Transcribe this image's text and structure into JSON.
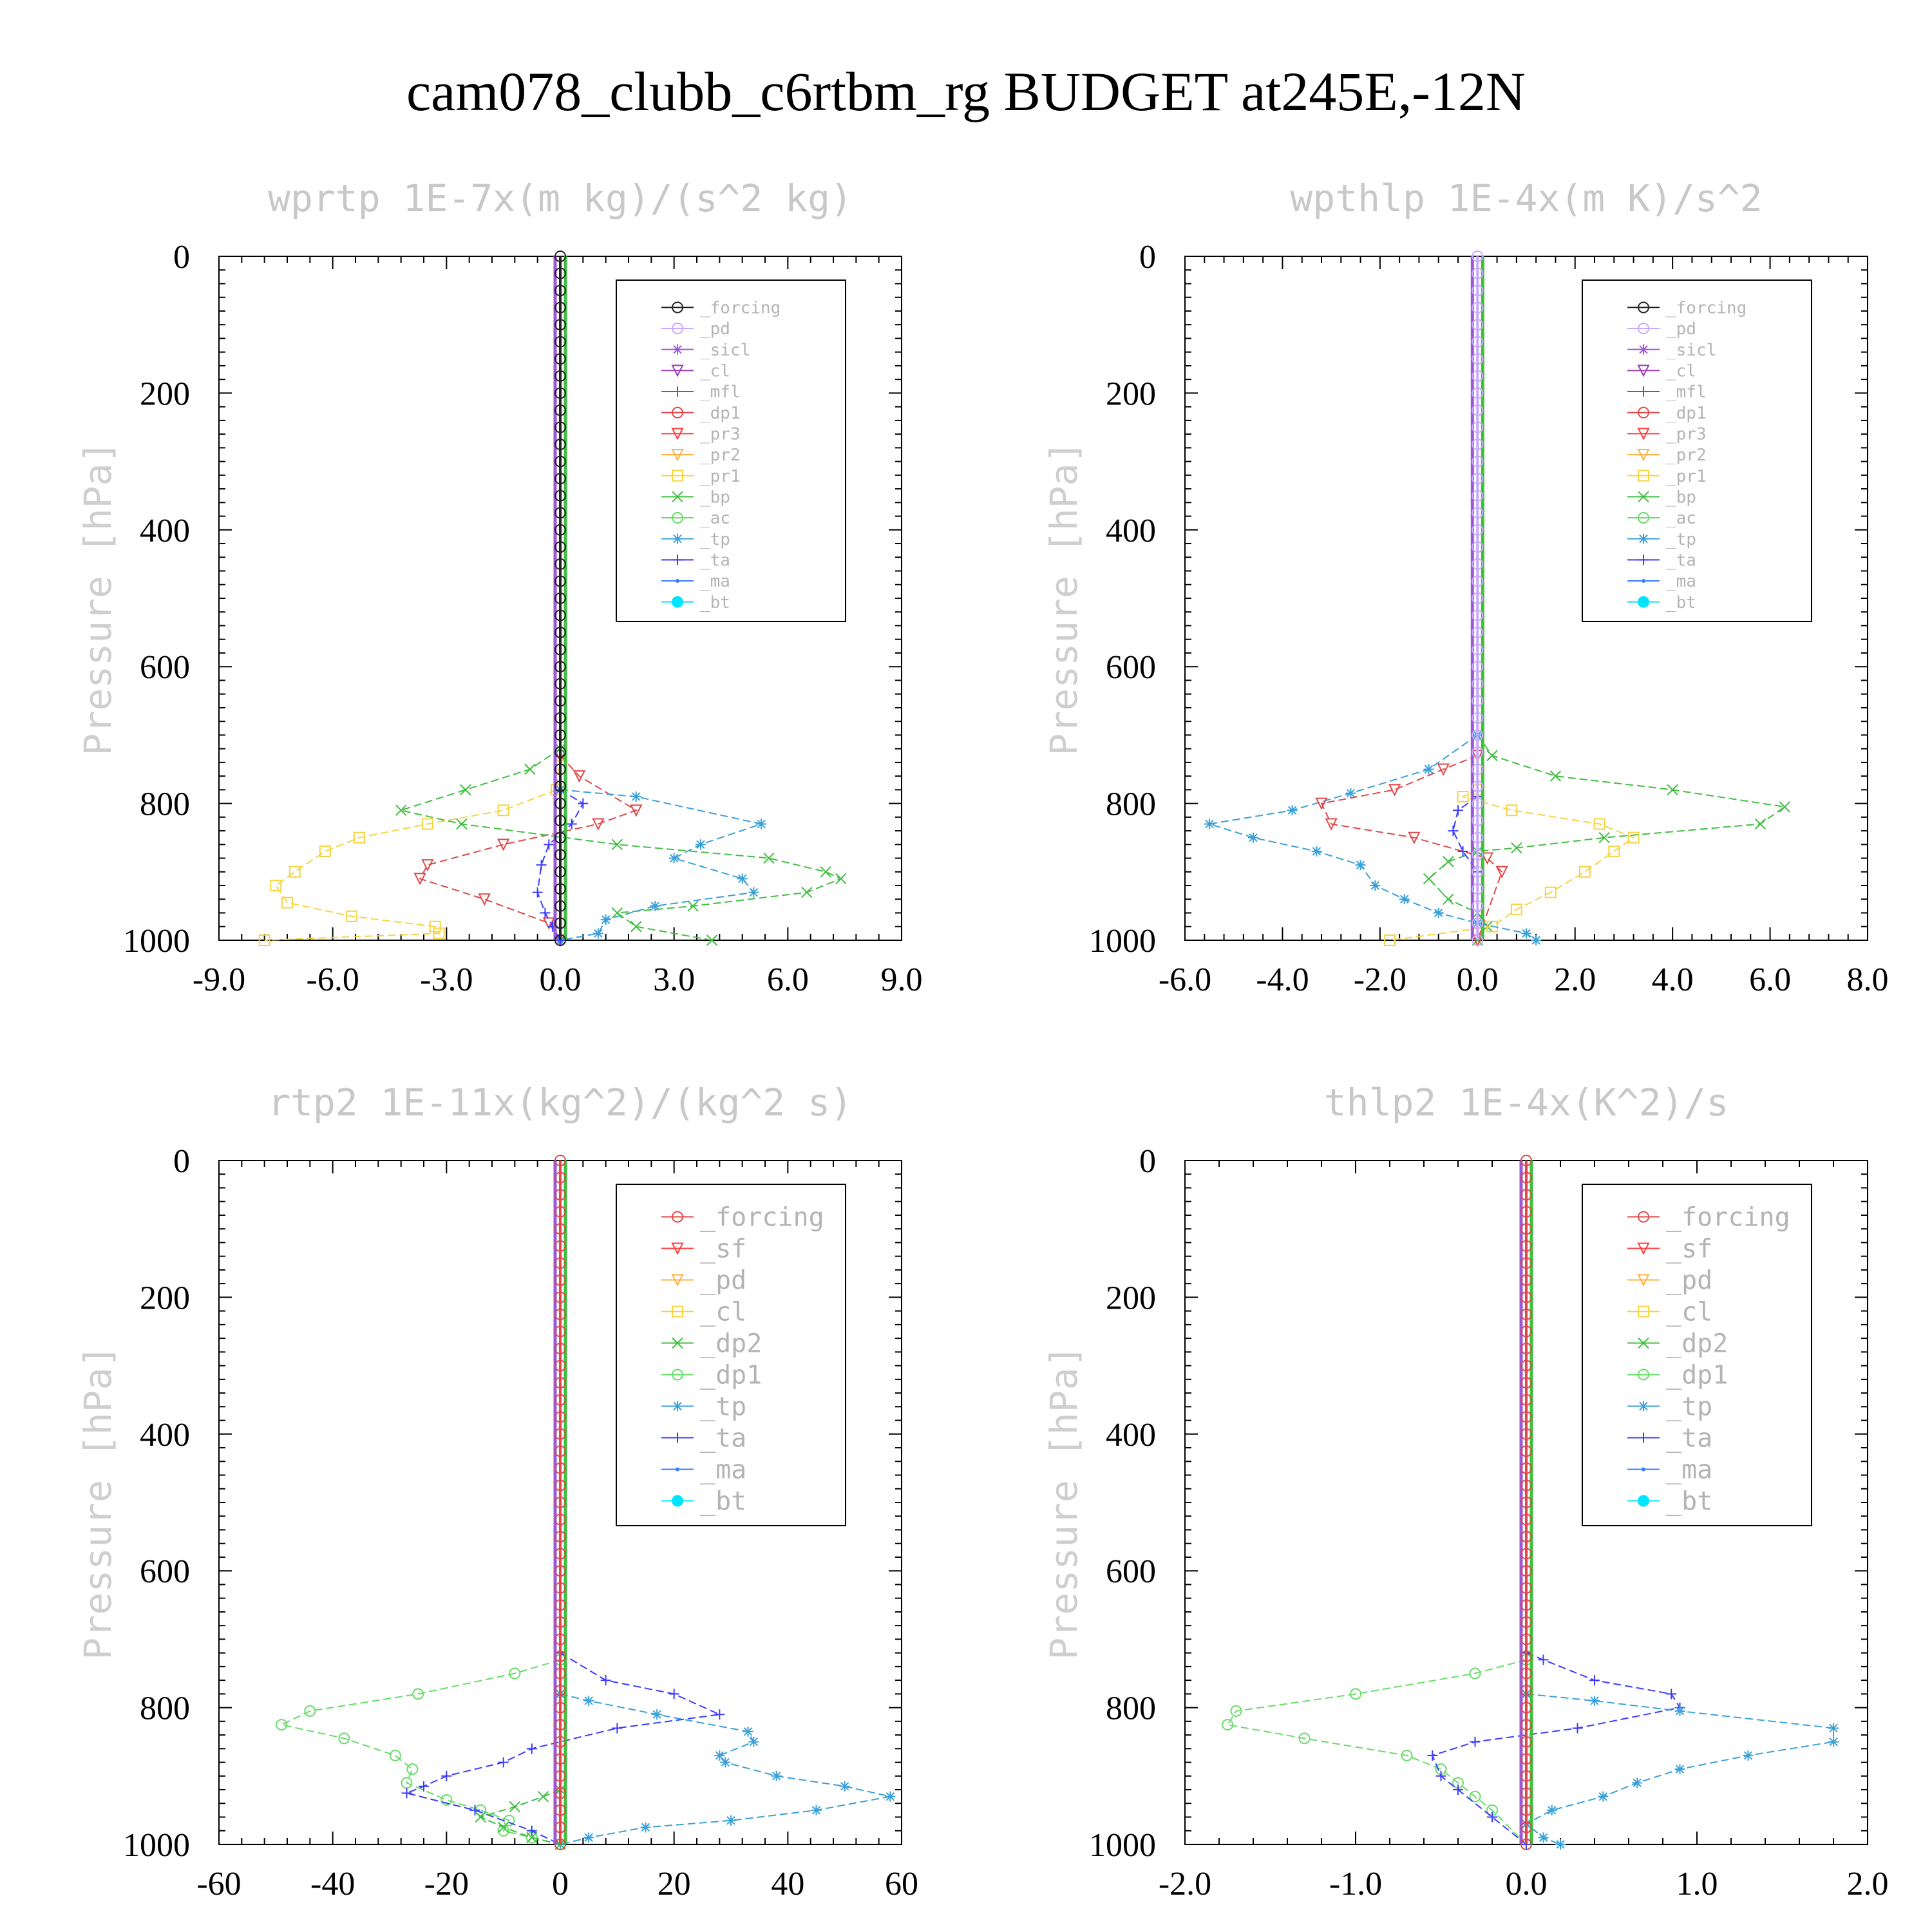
{
  "title": "cam078_clubb_c6rtbm_rg  BUDGET at245E,-12N",
  "colors": {
    "forcing_black": "#222222",
    "pd": "#c9a8ff",
    "sicl": "#9b59d6",
    "cl_purple": "#9b3fb5",
    "mfl": "#d43060",
    "dp1_red": "#e04848",
    "red": "#ff3c3c",
    "orange": "#ffb040",
    "yellow": "#f5d442",
    "green": "#3fbf3f",
    "lightgreen": "#66dd66",
    "teal": "#3aa0d8",
    "blue": "#3b3bff",
    "cyan": "#00e5ff"
  },
  "chart_data": [
    {
      "type": "line",
      "title": "wprtp  1E-7x(m kg)/(s^2 kg)",
      "ylabel": "Pressure [hPa]",
      "xlim": [
        -9,
        9
      ],
      "ylim": [
        1000,
        0
      ],
      "xticks": [
        "-9.0",
        "-6.0",
        "-3.0",
        "0.0",
        "3.0",
        "6.0",
        "9.0"
      ],
      "yticks": [
        "0",
        "200",
        "400",
        "600",
        "800",
        "1000"
      ],
      "legend": [
        "_forcing",
        "_pd",
        "_sicl",
        "_cl",
        "_mfl",
        "_dp1",
        "_pr3",
        "_pr2",
        "_pr1",
        "_bp",
        "_ac",
        "_tp",
        "_ta",
        "_ma",
        "_bt"
      ],
      "series": [
        {
          "name": "_pr1",
          "color": "#f5d442",
          "marker": "square",
          "x": [
            0,
            -0.1,
            -1.5,
            -3.5,
            -5.3,
            -6.2,
            -7.0,
            -7.5,
            -7.2,
            -5.5,
            -3.3,
            -3.2,
            -7.8
          ],
          "y": [
            730,
            780,
            810,
            830,
            850,
            870,
            900,
            920,
            945,
            965,
            980,
            990,
            1000
          ]
        },
        {
          "name": "_dp1",
          "color": "#e04848",
          "marker": "tri-down",
          "x": [
            0,
            0.5,
            2,
            1,
            -1.5,
            -3.5,
            -3.7,
            -2,
            -0.3,
            0
          ],
          "y": [
            730,
            760,
            810,
            830,
            860,
            890,
            910,
            940,
            975,
            1000
          ]
        },
        {
          "name": "_bp",
          "color": "#3fbf3f",
          "marker": "x",
          "x": [
            0,
            -0.8,
            -2.5,
            -4.2,
            -2.6,
            1.5,
            5.5,
            7,
            7.4,
            6.5,
            3.5,
            1.5,
            2,
            4
          ],
          "y": [
            720,
            750,
            780,
            810,
            830,
            860,
            880,
            900,
            910,
            930,
            950,
            960,
            980,
            1000
          ]
        },
        {
          "name": "_tp",
          "color": "#3aa0d8",
          "marker": "star",
          "x": [
            0,
            2,
            5.3,
            3.7,
            3,
            4.8,
            5.1,
            2.5,
            1.2,
            1,
            0
          ],
          "y": [
            780,
            790,
            830,
            860,
            880,
            910,
            930,
            950,
            970,
            990,
            1000
          ]
        },
        {
          "name": "_ta",
          "color": "#3b3bff",
          "marker": "plus",
          "x": [
            0,
            0.6,
            0.3,
            -0.3,
            -0.5,
            -0.6,
            -0.4,
            -0.2,
            0
          ],
          "y": [
            780,
            800,
            830,
            860,
            890,
            930,
            960,
            980,
            1000
          ]
        },
        {
          "name": "_forcing",
          "color": "#222222",
          "marker": "circle",
          "x": [
            0,
            0
          ],
          "y": [
            0,
            1000
          ]
        }
      ]
    },
    {
      "type": "line",
      "title": "wpthlp  1E-4x(m K)/s^2",
      "ylabel": "Pressure [hPa]",
      "xlim": [
        -6,
        8
      ],
      "ylim": [
        1000,
        0
      ],
      "xticks": [
        "-6.0",
        "-4.0",
        "-2.0",
        "0.0",
        "2.0",
        "4.0",
        "6.0",
        "8.0"
      ],
      "yticks": [
        "0",
        "200",
        "400",
        "600",
        "800",
        "1000"
      ],
      "legend": [
        "_forcing",
        "_pd",
        "_sicl",
        "_cl",
        "_mfl",
        "_dp1",
        "_pr3",
        "_pr2",
        "_pr1",
        "_bp",
        "_ac",
        "_tp",
        "_ta",
        "_ma",
        "_bt"
      ],
      "series": [
        {
          "name": "_bp",
          "color": "#3fbf3f",
          "marker": "x",
          "x": [
            0,
            0.3,
            1.6,
            4,
            6.3,
            5.8,
            2.6,
            0.8,
            0,
            -0.6,
            -1,
            -0.6,
            0,
            0.2,
            0
          ],
          "y": [
            700,
            730,
            760,
            780,
            805,
            830,
            850,
            865,
            870,
            885,
            910,
            940,
            960,
            980,
            1000
          ]
        },
        {
          "name": "_pr1",
          "color": "#f5d442",
          "marker": "square",
          "x": [
            0,
            -0.3,
            0.7,
            2.5,
            3.2,
            2.8,
            2.2,
            1.5,
            0.8,
            0.3,
            -1.8
          ],
          "y": [
            780,
            790,
            810,
            830,
            850,
            870,
            900,
            930,
            955,
            980,
            1000
          ]
        },
        {
          "name": "_tp",
          "color": "#3aa0d8",
          "marker": "star",
          "x": [
            0,
            -1,
            -2.6,
            -3.8,
            -5.5,
            -4.6,
            -3.3,
            -2.4,
            -2.1,
            -1.5,
            -0.8,
            0,
            1,
            1.2
          ],
          "y": [
            700,
            750,
            785,
            810,
            830,
            850,
            870,
            890,
            920,
            940,
            960,
            975,
            990,
            1000
          ]
        },
        {
          "name": "_dp1",
          "color": "#e04848",
          "marker": "tri-down",
          "x": [
            0,
            -0.7,
            -1.7,
            -3.2,
            -3,
            -1.3,
            0.2,
            0.5,
            0
          ],
          "y": [
            730,
            750,
            780,
            800,
            830,
            850,
            880,
            900,
            1000
          ]
        },
        {
          "name": "_ta",
          "color": "#3b3bff",
          "marker": "plus",
          "x": [
            0,
            -0.4,
            -0.5,
            -0.3,
            0
          ],
          "y": [
            790,
            810,
            840,
            870,
            900
          ]
        },
        {
          "name": "_forcing",
          "color": "#c9a8ff",
          "marker": "circle",
          "x": [
            0,
            0
          ],
          "y": [
            0,
            1000
          ]
        }
      ]
    },
    {
      "type": "line",
      "title": "rtp2  1E-11x(kg^2)/(kg^2 s)",
      "ylabel": "Pressure [hPa]",
      "xlim": [
        -60,
        60
      ],
      "ylim": [
        1000,
        0
      ],
      "xticks": [
        "-60",
        "-40",
        "-20",
        "0",
        "20",
        "40",
        "60"
      ],
      "yticks": [
        "0",
        "200",
        "400",
        "600",
        "800",
        "1000"
      ],
      "legend": [
        "_forcing",
        "_sf",
        "_pd",
        "_cl",
        "_dp2",
        "_dp1",
        "_tp",
        "_ta",
        "_ma",
        "_bt"
      ],
      "series": [
        {
          "name": "_dp1",
          "color": "#66dd66",
          "marker": "circle",
          "x": [
            0,
            -8,
            -25,
            -44,
            -49,
            -38,
            -29,
            -26,
            -27,
            -20,
            -14,
            -9,
            -10,
            -5,
            0
          ],
          "y": [
            730,
            750,
            780,
            805,
            825,
            845,
            870,
            890,
            910,
            935,
            950,
            965,
            980,
            990,
            1000
          ]
        },
        {
          "name": "_ta",
          "color": "#3b3bff",
          "marker": "plus",
          "x": [
            0,
            8,
            20,
            28,
            10,
            -5,
            -10,
            -20,
            -24,
            -27,
            -15,
            -5,
            0
          ],
          "y": [
            720,
            760,
            780,
            810,
            830,
            860,
            880,
            900,
            915,
            925,
            950,
            980,
            1000
          ]
        },
        {
          "name": "_tp",
          "color": "#3aa0d8",
          "marker": "star",
          "x": [
            0,
            5,
            17,
            33,
            34,
            28,
            29,
            38,
            50,
            58,
            45,
            30,
            15,
            5,
            0
          ],
          "y": [
            780,
            790,
            810,
            835,
            850,
            870,
            880,
            900,
            915,
            930,
            950,
            965,
            975,
            990,
            1000
          ]
        },
        {
          "name": "_dp2",
          "color": "#3fbf3f",
          "marker": "x",
          "x": [
            0,
            -3,
            -8,
            -14,
            -10,
            -5,
            0
          ],
          "y": [
            920,
            930,
            945,
            960,
            975,
            990,
            1000
          ]
        },
        {
          "name": "_forcing",
          "color": "#e04848",
          "marker": "circle",
          "x": [
            0,
            0
          ],
          "y": [
            0,
            1000
          ]
        }
      ]
    },
    {
      "type": "line",
      "title": "thlp2  1E-4x(K^2)/s",
      "ylabel": "Pressure [hPa]",
      "xlim": [
        -2,
        2
      ],
      "ylim": [
        1000,
        0
      ],
      "xticks": [
        "-2.0",
        "-1.0",
        "0.0",
        "1.0",
        "2.0"
      ],
      "yticks": [
        "0",
        "200",
        "400",
        "600",
        "800",
        "1000"
      ],
      "legend": [
        "_forcing",
        "_sf",
        "_pd",
        "_cl",
        "_dp2",
        "_dp1",
        "_tp",
        "_ta",
        "_ma",
        "_bt"
      ],
      "series": [
        {
          "name": "_dp1",
          "color": "#66dd66",
          "marker": "circle",
          "x": [
            0,
            -0.3,
            -1,
            -1.7,
            -1.75,
            -1.3,
            -0.7,
            -0.5,
            -0.4,
            -0.3,
            -0.2,
            0
          ],
          "y": [
            730,
            750,
            780,
            805,
            825,
            845,
            870,
            890,
            910,
            930,
            950,
            1000
          ]
        },
        {
          "name": "_ta",
          "color": "#3b3bff",
          "marker": "plus",
          "x": [
            0,
            0.1,
            0.4,
            0.85,
            0.9,
            0.3,
            -0.3,
            -0.55,
            -0.5,
            -0.4,
            -0.2,
            0
          ],
          "y": [
            720,
            730,
            760,
            780,
            800,
            830,
            850,
            870,
            900,
            920,
            960,
            1000
          ]
        },
        {
          "name": "_tp",
          "color": "#3aa0d8",
          "marker": "star",
          "x": [
            0,
            0.4,
            0.9,
            1.8,
            1.8,
            1.3,
            0.9,
            0.65,
            0.45,
            0.15,
            0,
            0.1,
            0.2
          ],
          "y": [
            780,
            790,
            805,
            830,
            850,
            870,
            890,
            910,
            930,
            950,
            970,
            990,
            1000
          ]
        },
        {
          "name": "_forcing",
          "color": "#e04848",
          "marker": "circle",
          "x": [
            0,
            0
          ],
          "y": [
            0,
            1000
          ]
        }
      ]
    }
  ]
}
